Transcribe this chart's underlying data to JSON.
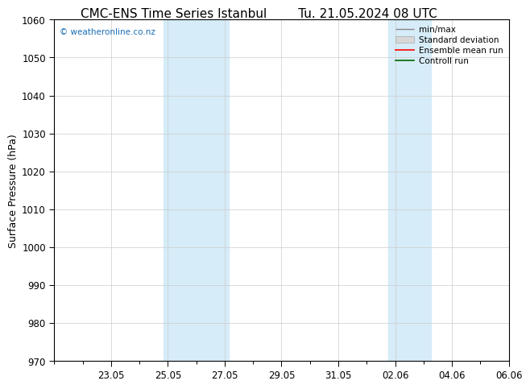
{
  "title": "CMC-ENS Time Series Istanbul",
  "title2": "Tu. 21.05.2024 08 UTC",
  "ylabel": "Surface Pressure (hPa)",
  "ylim": [
    970,
    1060
  ],
  "yticks": [
    970,
    980,
    990,
    1000,
    1010,
    1020,
    1030,
    1040,
    1050,
    1060
  ],
  "x_min": 0.0,
  "x_max": 16.0,
  "xtick_labels": [
    "23.05",
    "25.05",
    "27.05",
    "29.05",
    "31.05",
    "02.06",
    "04.06",
    "06.06"
  ],
  "xtick_positions": [
    2.0,
    4.0,
    6.0,
    8.0,
    10.0,
    12.0,
    14.0,
    16.0
  ],
  "shaded_regions": [
    {
      "x_start": 3.85,
      "x_end": 6.15
    },
    {
      "x_start": 11.75,
      "x_end": 13.25
    }
  ],
  "shaded_color": "#d6ecf8",
  "watermark": "© weatheronline.co.nz",
  "watermark_color": "#1a6eb5",
  "background_color": "#ffffff",
  "grid_color": "#cccccc",
  "title_fontsize": 11,
  "tick_fontsize": 8.5,
  "ylabel_fontsize": 9
}
